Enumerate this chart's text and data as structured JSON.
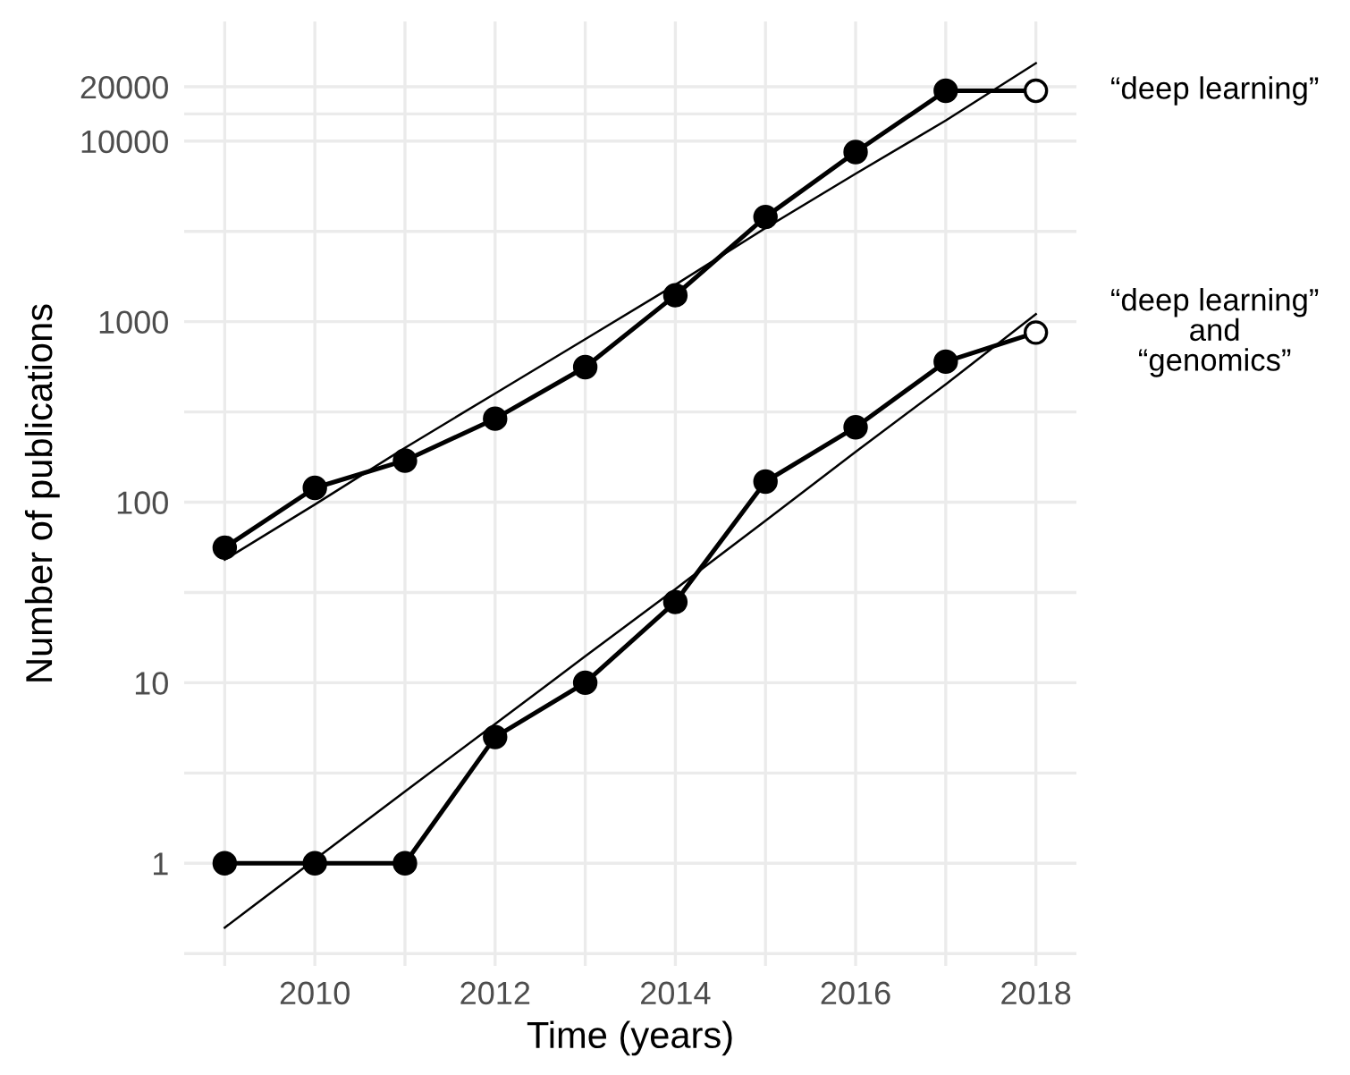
{
  "chart_data": {
    "type": "line",
    "xlabel": "Time (years)",
    "ylabel": "Number of publications",
    "log": "y",
    "grid": true,
    "marker": "circle",
    "line_style": "solid",
    "xlim": [
      2008.55,
      2018.45
    ],
    "xticks": [
      {
        "value": 2009,
        "label": null
      },
      2010,
      {
        "value": 2011,
        "label": null
      },
      2012,
      {
        "value": 2013,
        "label": null
      },
      2014,
      {
        "value": 2015,
        "label": null
      },
      2016,
      {
        "value": 2017,
        "label": null
      },
      2018
    ],
    "ylim": [
      0.27,
      46000
    ],
    "yticks": [
      {
        "value": 0.316,
        "label": null
      },
      1,
      {
        "value": 3.16,
        "label": null
      },
      10,
      {
        "value": 31.6,
        "label": null
      },
      100,
      {
        "value": 316,
        "label": null
      },
      1000,
      {
        "value": 3162,
        "label": null
      },
      10000,
      {
        "value": 14142,
        "label": null
      },
      20000
    ],
    "x": [
      2009,
      2010,
      2011,
      2012,
      2013,
      2014,
      2015,
      2016,
      2017,
      2018
    ],
    "series": [
      {
        "name": "“deep learning”",
        "color": "#000000",
        "colors": [
          "#000000",
          "#000000",
          "#000000",
          "#000000",
          "#000000",
          "#000000",
          "#000000",
          "#000000",
          "#000000",
          "#ffffff"
        ],
        "values": [
          56,
          120,
          170,
          290,
          560,
          1400,
          3800,
          8700,
          19000,
          19000
        ]
      },
      {
        "name": "“deep learning”\nand\n“genomics”",
        "color": "#000000",
        "colors": [
          "#000000",
          "#000000",
          "#000000",
          "#000000",
          "#000000",
          "#000000",
          "#000000",
          "#000000",
          "#000000",
          "#ffffff"
        ],
        "values": [
          1,
          1,
          1,
          5,
          10,
          28,
          130,
          260,
          600,
          870
        ]
      },
      {
        "type": "line",
        "marker": "none",
        "color": "#000000",
        "values": [
          48,
          97,
          200,
          400,
          800,
          1600,
          3300,
          6600,
          13000,
          27000
        ]
      },
      {
        "type": "line",
        "marker": "none",
        "color": "#000000",
        "values": [
          0.44,
          1.05,
          2.5,
          5.9,
          14,
          33,
          79,
          190,
          450,
          1100
        ]
      }
    ]
  }
}
